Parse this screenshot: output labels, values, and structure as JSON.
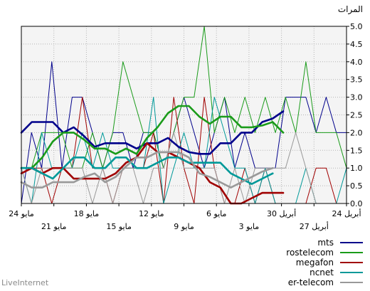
{
  "chart_data": {
    "type": "line",
    "unit_label": "المرات",
    "watermark": "LiveInternet",
    "ylim": [
      0,
      5
    ],
    "y_ticks": [
      "0.0",
      "0.5",
      "1.0",
      "1.5",
      "2.0",
      "2.5",
      "3.0",
      "3.5",
      "4.0",
      "4.5",
      "5.0"
    ],
    "x_ticks_row1": [
      "24 مايو",
      "18 مايو",
      "12 مايو",
      "6 مايو",
      "30 أبريل",
      "24 أبريل"
    ],
    "x_ticks_row2": [
      "21 مايو",
      "15 مايو",
      "9 مايو",
      "3 مايو",
      "27 أبريل"
    ],
    "grid": true,
    "legend_position": "bottom-right",
    "series": [
      {
        "name": "mts",
        "color": "#00008b",
        "raw": [
          0,
          2,
          1,
          4,
          1,
          3,
          3,
          2,
          1,
          2,
          2,
          1,
          2,
          2,
          1,
          2,
          3,
          2,
          1,
          2,
          3,
          1,
          2,
          1,
          1,
          1,
          3,
          3,
          3,
          2,
          3,
          2,
          2
        ],
        "smooth": [
          2.0,
          2.3,
          2.3,
          2.3,
          2.0,
          2.15,
          1.9,
          1.6,
          1.7,
          1.7,
          1.7,
          1.55,
          1.7,
          1.7,
          1.85,
          1.6,
          1.45,
          1.4,
          1.4,
          1.7,
          1.7,
          2.0,
          2.0,
          2.3,
          2.4,
          2.6
        ]
      },
      {
        "name": "rostelecom",
        "color": "#1a9b1a",
        "raw": [
          1,
          1,
          2,
          2,
          2,
          1,
          1,
          2,
          1,
          2,
          4,
          3,
          2,
          2,
          1,
          2,
          3,
          3,
          5,
          2,
          3,
          2,
          3,
          2,
          3,
          2,
          3,
          2,
          4,
          2,
          2,
          2,
          1
        ],
        "smooth": [
          1.0,
          1.0,
          1.3,
          1.75,
          2.0,
          2.0,
          1.8,
          1.55,
          1.55,
          1.4,
          1.55,
          1.4,
          1.85,
          2.15,
          2.55,
          2.75,
          2.75,
          2.45,
          2.25,
          2.45,
          2.45,
          2.15,
          2.15,
          2.2,
          2.3,
          2.0
        ]
      },
      {
        "name": "megafon",
        "color": "#a00000",
        "raw": [
          1,
          1,
          1,
          0,
          1,
          1,
          3,
          1,
          1,
          0,
          1,
          1,
          1,
          2,
          0,
          3,
          1,
          0,
          3,
          1,
          0,
          0,
          1,
          0,
          1,
          0,
          0,
          0,
          0,
          1,
          1,
          0,
          0
        ],
        "smooth": [
          0.85,
          1.0,
          0.85,
          1.0,
          1.0,
          0.7,
          0.7,
          0.7,
          0.7,
          0.85,
          1.15,
          1.3,
          1.7,
          1.45,
          1.45,
          1.3,
          1.15,
          1.0,
          0.6,
          0.45,
          0.0,
          0.0,
          0.15,
          0.3,
          0.3,
          0.3
        ]
      },
      {
        "name": "ncnet",
        "color": "#009999",
        "raw": [
          1,
          0,
          2,
          1,
          1,
          1,
          2,
          1,
          2,
          1,
          1,
          1,
          1,
          3,
          0,
          1,
          2,
          1,
          1,
          3,
          2,
          1,
          1,
          0,
          1,
          0,
          0,
          0,
          1,
          0,
          0,
          0,
          1
        ],
        "smooth": [
          1.0,
          1.0,
          0.85,
          0.7,
          1.0,
          1.3,
          1.3,
          1.0,
          1.0,
          1.3,
          1.3,
          1.0,
          1.0,
          1.15,
          1.3,
          1.3,
          1.15,
          1.15,
          1.15,
          1.15,
          0.85,
          0.7,
          0.55,
          0.7,
          0.85
        ]
      },
      {
        "name": "er-telecom",
        "color": "#999999",
        "raw": [
          1,
          0,
          1,
          1,
          1,
          1,
          1,
          0,
          1,
          0,
          1,
          1,
          0,
          1,
          1,
          2,
          1,
          1,
          1,
          1,
          0,
          1,
          0,
          1,
          1,
          1,
          1,
          2,
          1,
          0,
          0,
          0,
          0
        ],
        "smooth": [
          0.6,
          0.45,
          0.45,
          0.6,
          0.6,
          0.6,
          0.75,
          0.85,
          0.6,
          0.75,
          1.05,
          1.3,
          1.3,
          1.45,
          1.45,
          1.45,
          1.3,
          0.85,
          0.75,
          0.6,
          0.45,
          0.6,
          0.75,
          0.9,
          1.0
        ]
      }
    ]
  }
}
